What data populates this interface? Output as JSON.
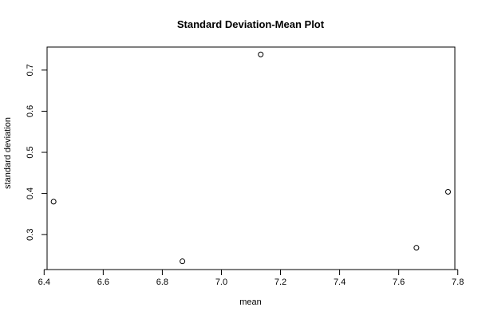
{
  "chart_data": {
    "type": "scatter",
    "title": "Standard Deviation-Mean Plot",
    "xlabel": "mean",
    "ylabel": "standard deviation",
    "xlim": [
      6.41,
      7.79
    ],
    "ylim": [
      0.215,
      0.756
    ],
    "xticks": [
      6.4,
      6.6,
      6.8,
      7.0,
      7.2,
      7.4,
      7.6,
      7.8
    ],
    "yticks": [
      0.3,
      0.4,
      0.5,
      0.6,
      0.7
    ],
    "points": [
      {
        "x": 6.432,
        "y": 0.38
      },
      {
        "x": 6.868,
        "y": 0.235
      },
      {
        "x": 7.133,
        "y": 0.738
      },
      {
        "x": 7.66,
        "y": 0.268
      },
      {
        "x": 7.767,
        "y": 0.404
      }
    ],
    "grid": false,
    "marker": "open-circle",
    "colors": {
      "foreground": "#000000",
      "background": "#ffffff"
    }
  }
}
